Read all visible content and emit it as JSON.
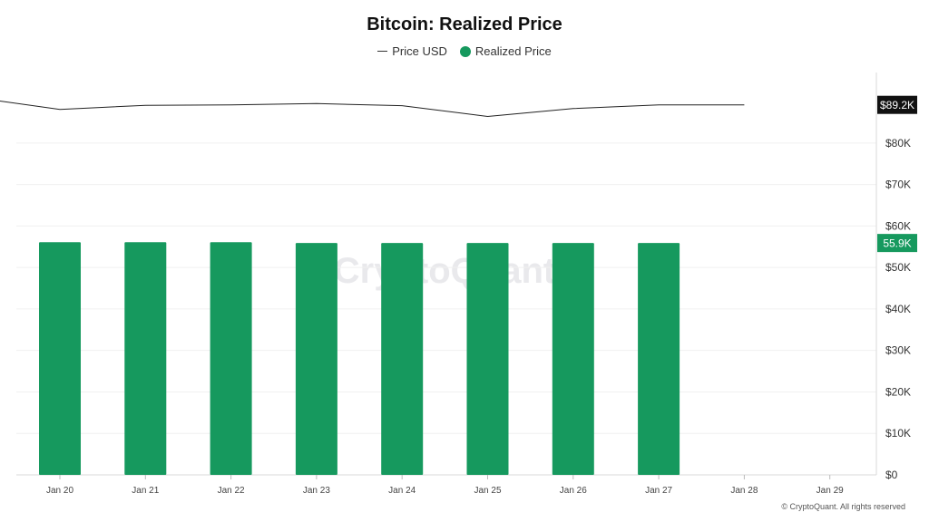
{
  "chart_data": {
    "type": "bar",
    "title": "Bitcoin: Realized Price",
    "categories": [
      "Jan 20",
      "Jan 21",
      "Jan 22",
      "Jan 23",
      "Jan 24",
      "Jan 25",
      "Jan 26",
      "Jan 27",
      "Jan 28",
      "Jan 29"
    ],
    "series": [
      {
        "name": "Price USD",
        "type": "line",
        "color": "#222222",
        "x": [
          "Jan 19",
          "Jan 20",
          "Jan 21",
          "Jan 22",
          "Jan 23",
          "Jan 24",
          "Jan 25",
          "Jan 26",
          "Jan 27",
          "Jan 28"
        ],
        "values": [
          91000,
          88100,
          89100,
          89200,
          89500,
          89000,
          86400,
          88300,
          89200,
          89200
        ]
      },
      {
        "name": "Realized Price",
        "type": "bar",
        "color": "#16995e",
        "x": [
          "Jan 20",
          "Jan 21",
          "Jan 22",
          "Jan 23",
          "Jan 24",
          "Jan 25",
          "Jan 26",
          "Jan 27"
        ],
        "values": [
          56100,
          56100,
          56100,
          55900,
          55900,
          55900,
          55900,
          55900
        ]
      }
    ],
    "y_ticks": [
      "$0",
      "$10K",
      "$20K",
      "$30K",
      "$40K",
      "$50K",
      "$60K",
      "$70K",
      "$80K"
    ],
    "ylim": [
      0,
      97000
    ],
    "y_axis_position": "right",
    "last_value_labels": [
      {
        "series": "Price USD",
        "text": "$89.2K",
        "value": 89200,
        "bg": "#111111",
        "fg": "#ffffff"
      },
      {
        "series": "Realized Price",
        "text": "55.9K",
        "value": 55900,
        "bg": "#16995e",
        "fg": "#ffffff"
      }
    ],
    "grid": true,
    "legend_position": "top-center",
    "watermark": "CryptoQuant"
  },
  "footer": "© CryptoQuant. All rights reserved"
}
